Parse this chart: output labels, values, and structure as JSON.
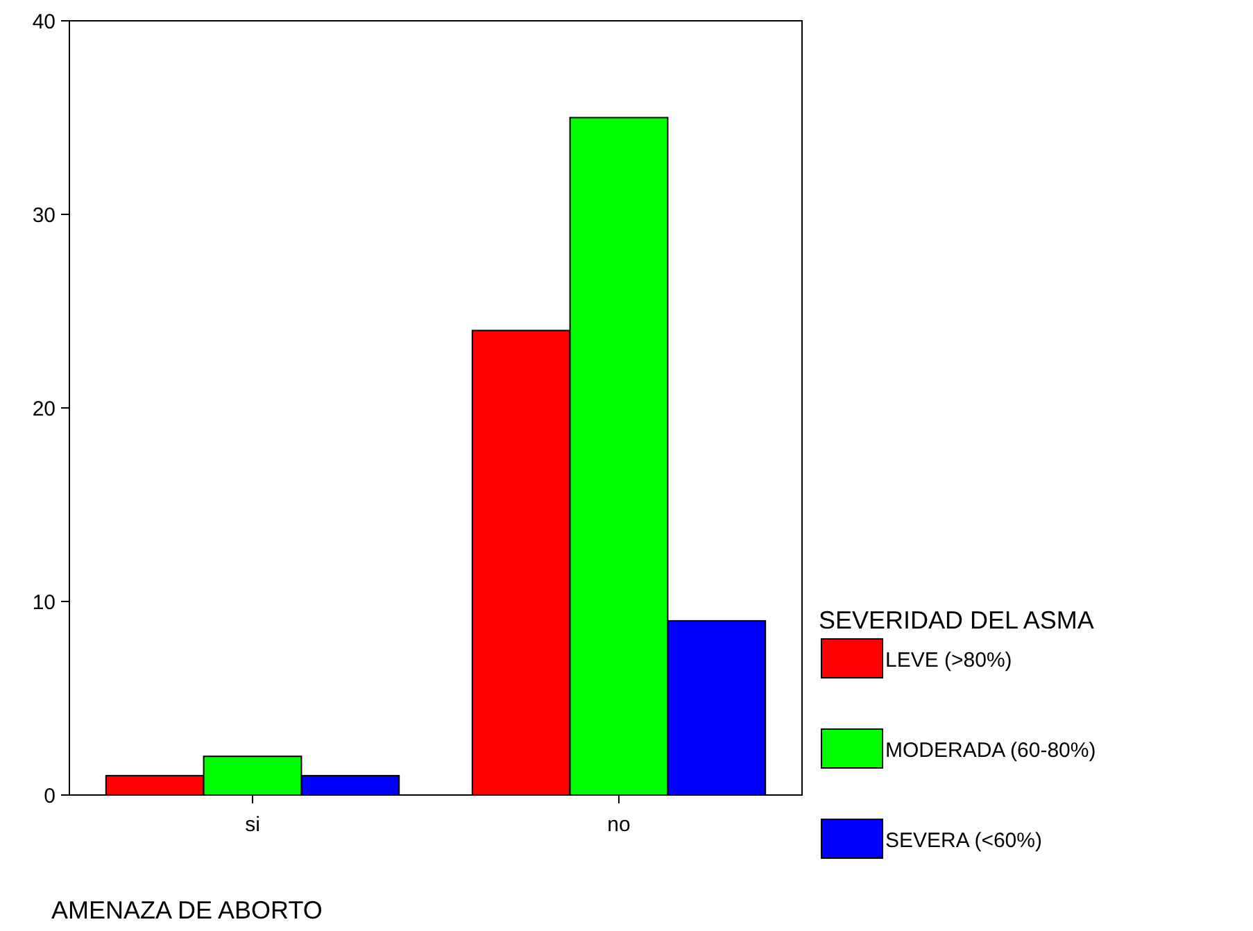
{
  "chart_data": {
    "type": "bar",
    "xlabel": "AMENAZA DE ABORTO",
    "legend_title": "SEVERIDAD DEL ASMA",
    "categories": [
      "si",
      "no"
    ],
    "series": [
      {
        "name": "LEVE (>80%)",
        "color": "#ff0000",
        "values": [
          1,
          24
        ]
      },
      {
        "name": "MODERADA (60-80%)",
        "color": "#00ff00",
        "values": [
          2,
          35
        ]
      },
      {
        "name": "SEVERA (<60%)",
        "color": "#0000ff",
        "values": [
          1,
          9
        ]
      }
    ],
    "ylim": [
      0,
      40
    ],
    "yticks": [
      0,
      10,
      20,
      30,
      40
    ],
    "grid": false,
    "legend": "right"
  }
}
